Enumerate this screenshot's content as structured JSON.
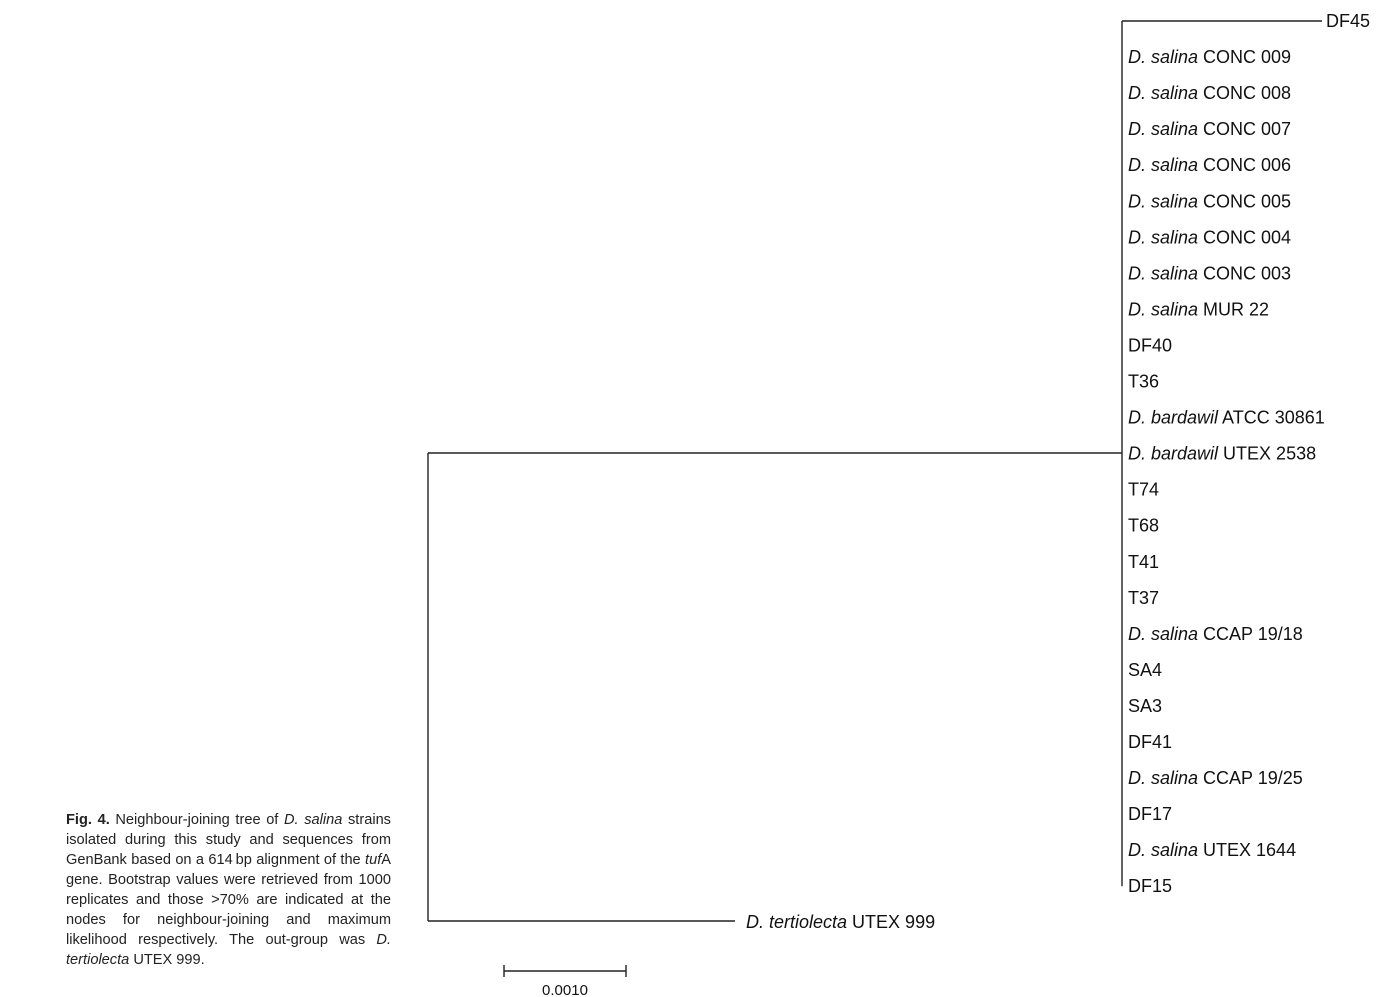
{
  "figure": {
    "tree": {
      "type": "neighbour-joining",
      "tips_top": [
        {
          "italic": "",
          "plain": "DF45"
        },
        {
          "italic": "D. salina",
          "plain": " CONC 009"
        },
        {
          "italic": "D. salina",
          "plain": " CONC 008"
        },
        {
          "italic": "D. salina",
          "plain": " CONC 007"
        },
        {
          "italic": "D. salina",
          "plain": " CONC 006"
        },
        {
          "italic": "D. salina",
          "plain": " CONC 005"
        },
        {
          "italic": "D. salina",
          "plain": " CONC 004"
        },
        {
          "italic": "D. salina",
          "plain": " CONC 003"
        },
        {
          "italic": "D. salina",
          "plain": " MUR 22"
        },
        {
          "italic": "",
          "plain": "DF40"
        },
        {
          "italic": "",
          "plain": "T36"
        },
        {
          "italic": "D. bardawil",
          "plain": " ATCC 30861"
        },
        {
          "italic": "D. bardawil",
          "plain": " UTEX 2538"
        },
        {
          "italic": "",
          "plain": "T74"
        },
        {
          "italic": "",
          "plain": "T68"
        },
        {
          "italic": "",
          "plain": "T41"
        },
        {
          "italic": "",
          "plain": "T37"
        },
        {
          "italic": "D. salina",
          "plain": " CCAP 19/18"
        },
        {
          "italic": "",
          "plain": "SA4"
        },
        {
          "italic": "",
          "plain": "SA3"
        },
        {
          "italic": "",
          "plain": "DF41"
        },
        {
          "italic": "D. salina",
          "plain": " CCAP 19/25"
        },
        {
          "italic": "",
          "plain": "DF17"
        },
        {
          "italic": "D. salina",
          "plain": " UTEX 1644"
        },
        {
          "italic": "",
          "plain": "DF15"
        }
      ],
      "outgroup": {
        "italic": "D. tertiolecta",
        "plain": " UTEX 999"
      },
      "scale_label": "0.0010"
    },
    "caption": {
      "label": "Fig. 4.",
      "t1": " Neighbour-joining tree of ",
      "i1": "D. salina",
      "t2": " strains isolated during this study and sequences from GenBank based on a 614 bp alignment of the ",
      "i2": "tuf",
      "t3": "A gene. Bootstrap values were retrieved from 1000 replicates and those >70% are indicated at the nodes for neighbour-joining and maximum likelihood respectively. The out-group was ",
      "i3": "D. tertiolecta",
      "t4": " UTEX 999."
    }
  }
}
